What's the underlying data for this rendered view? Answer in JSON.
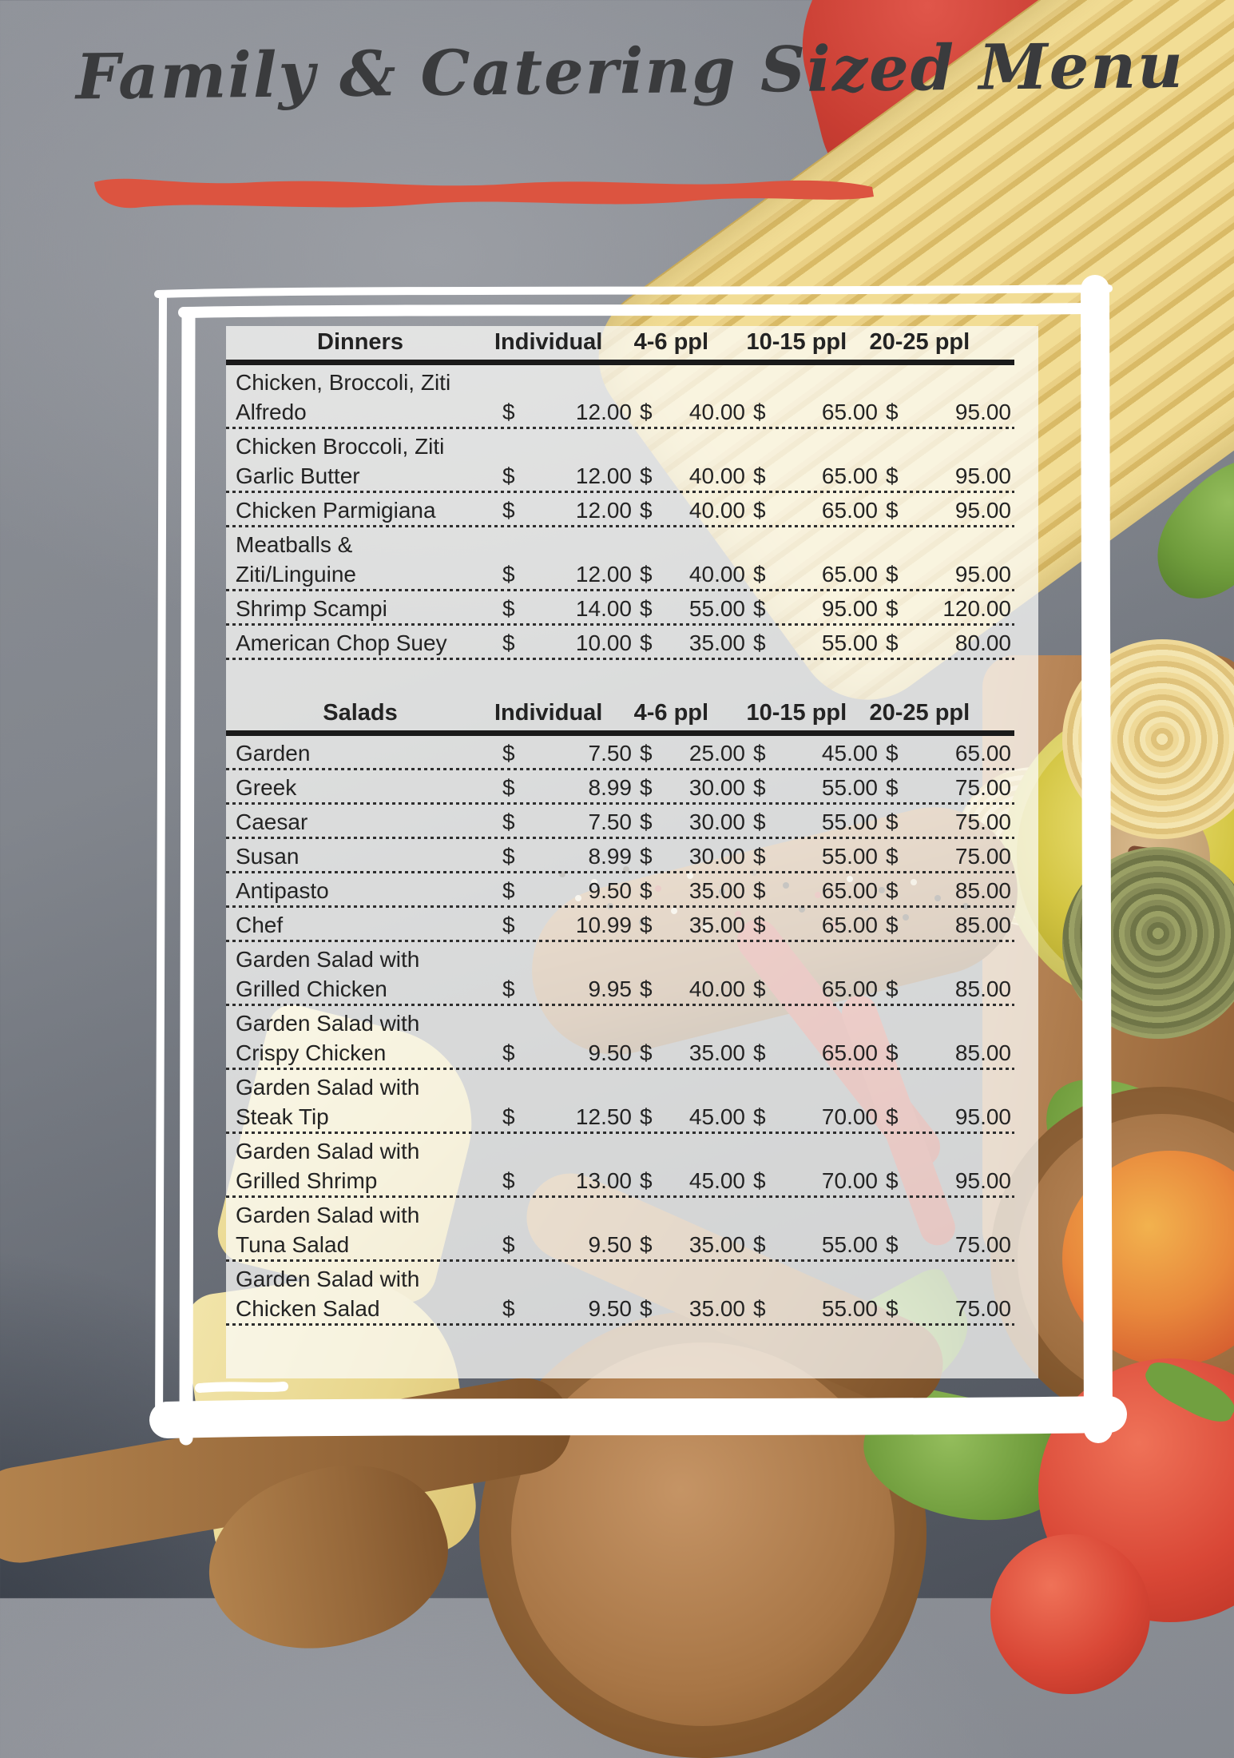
{
  "header": {
    "title": "Family & Catering Sized Menu"
  },
  "accent_colors": {
    "brush_underline_red": "#dc5440",
    "title_gray": "#3a3b3d",
    "table_text": "#232323",
    "panel_overlay": "rgba(251,251,248,0.75)",
    "frame_white": "#ffffff"
  },
  "tables": [
    {
      "section": "Dinners",
      "currency": "$",
      "columns": [
        "Individual",
        "4-6 ppl",
        "10-15 ppl",
        "20-25 ppl"
      ],
      "rows": [
        {
          "item": [
            "Chicken, Broccoli, Ziti",
            "Alfredo"
          ],
          "prices": [
            "12.00",
            "40.00",
            "65.00",
            "95.00"
          ]
        },
        {
          "item": [
            "Chicken Broccoli, Ziti",
            "Garlic Butter"
          ],
          "prices": [
            "12.00",
            "40.00",
            "65.00",
            "95.00"
          ]
        },
        {
          "item": [
            "Chicken Parmigiana"
          ],
          "prices": [
            "12.00",
            "40.00",
            "65.00",
            "95.00"
          ]
        },
        {
          "item": [
            "Meatballs &",
            "Ziti/Linguine"
          ],
          "prices": [
            "12.00",
            "40.00",
            "65.00",
            "95.00"
          ]
        },
        {
          "item": [
            "Shrimp Scampi"
          ],
          "prices": [
            "14.00",
            "55.00",
            "95.00",
            "120.00"
          ]
        },
        {
          "item": [
            "American Chop Suey"
          ],
          "prices": [
            "10.00",
            "35.00",
            "55.00",
            "80.00"
          ]
        }
      ]
    },
    {
      "section": "Salads",
      "currency": "$",
      "columns": [
        "Individual",
        "4-6 ppl",
        "10-15 ppl",
        "20-25 ppl"
      ],
      "rows": [
        {
          "item": [
            "Garden"
          ],
          "prices": [
            "7.50",
            "25.00",
            "45.00",
            "65.00"
          ]
        },
        {
          "item": [
            "Greek"
          ],
          "prices": [
            "8.99",
            "30.00",
            "55.00",
            "75.00"
          ]
        },
        {
          "item": [
            "Caesar"
          ],
          "prices": [
            "7.50",
            "30.00",
            "55.00",
            "75.00"
          ]
        },
        {
          "item": [
            "Susan"
          ],
          "prices": [
            "8.99",
            "30.00",
            "55.00",
            "75.00"
          ]
        },
        {
          "item": [
            "Antipasto"
          ],
          "prices": [
            "9.50",
            "35.00",
            "65.00",
            "85.00"
          ]
        },
        {
          "item": [
            "Chef"
          ],
          "prices": [
            "10.99",
            "35.00",
            "65.00",
            "85.00"
          ]
        },
        {
          "item": [
            "Garden Salad with",
            "Grilled Chicken"
          ],
          "prices": [
            "9.95",
            "40.00",
            "65.00",
            "85.00"
          ]
        },
        {
          "item": [
            "Garden Salad with",
            "Crispy Chicken"
          ],
          "prices": [
            "9.50",
            "35.00",
            "65.00",
            "85.00"
          ]
        },
        {
          "item": [
            "Garden Salad with",
            "Steak Tip"
          ],
          "prices": [
            "12.50",
            "45.00",
            "70.00",
            "95.00"
          ]
        },
        {
          "item": [
            "Garden Salad with",
            "Grilled Shrimp"
          ],
          "prices": [
            "13.00",
            "45.00",
            "70.00",
            "95.00"
          ]
        },
        {
          "item": [
            "Garden Salad with",
            "Tuna Salad"
          ],
          "prices": [
            "9.50",
            "35.00",
            "55.00",
            "75.00"
          ]
        },
        {
          "item": [
            "Garden Salad with",
            "Chicken Salad"
          ],
          "prices": [
            "9.50",
            "35.00",
            "55.00",
            "75.00"
          ]
        }
      ]
    }
  ]
}
